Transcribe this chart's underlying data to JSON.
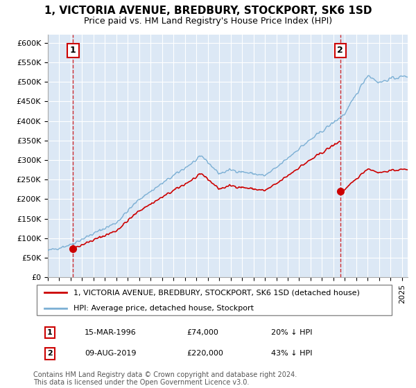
{
  "title": "1, VICTORIA AVENUE, BREDBURY, STOCKPORT, SK6 1SD",
  "subtitle": "Price paid vs. HM Land Registry's House Price Index (HPI)",
  "ylabel_ticks": [
    "£0",
    "£50K",
    "£100K",
    "£150K",
    "£200K",
    "£250K",
    "£300K",
    "£350K",
    "£400K",
    "£450K",
    "£500K",
    "£550K",
    "£600K"
  ],
  "ytick_values": [
    0,
    50000,
    100000,
    150000,
    200000,
    250000,
    300000,
    350000,
    400000,
    450000,
    500000,
    550000,
    600000
  ],
  "ylim": [
    0,
    620000
  ],
  "xlim_start": 1994.0,
  "xlim_end": 2025.5,
  "sale1_x": 1996.21,
  "sale1_y": 74000,
  "sale1_label": "1",
  "sale2_x": 2019.6,
  "sale2_y": 220000,
  "sale2_label": "2",
  "sale1_date": "15-MAR-1996",
  "sale1_price": "£74,000",
  "sale1_hpi": "20% ↓ HPI",
  "sale2_date": "09-AUG-2019",
  "sale2_price": "£220,000",
  "sale2_hpi": "43% ↓ HPI",
  "legend_line1": "1, VICTORIA AVENUE, BREDBURY, STOCKPORT, SK6 1SD (detached house)",
  "legend_line2": "HPI: Average price, detached house, Stockport",
  "footnote": "Contains HM Land Registry data © Crown copyright and database right 2024.\nThis data is licensed under the Open Government Licence v3.0.",
  "hpi_color": "#7bafd4",
  "price_color": "#cc0000",
  "dashed_line_color": "#cc0000",
  "plot_bg_color": "#dce8f5",
  "grid_color": "#ffffff",
  "title_fontsize": 11,
  "subtitle_fontsize": 9,
  "tick_fontsize": 8,
  "legend_fontsize": 8,
  "footnote_fontsize": 7
}
